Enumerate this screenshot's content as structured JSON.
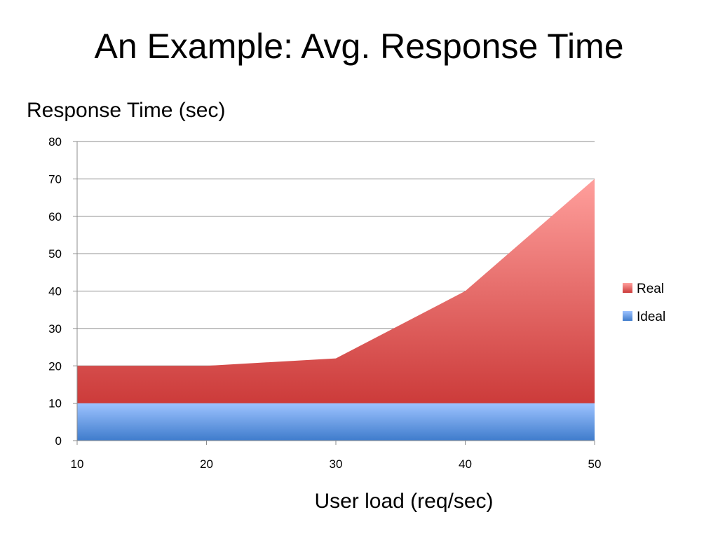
{
  "slide": {
    "title": "An Example: Avg. Response Time"
  },
  "chart_data": {
    "type": "area",
    "stacked": true,
    "ylabel": "Response Time (sec)",
    "xlabel": "User load (req/sec)",
    "x": [
      10,
      20,
      30,
      40,
      50
    ],
    "xlim": [
      10,
      50
    ],
    "ylim": [
      0,
      80
    ],
    "y_ticks": [
      0,
      10,
      20,
      30,
      40,
      50,
      60,
      70,
      80
    ],
    "x_ticks": [
      10,
      20,
      30,
      40,
      50
    ],
    "grid": true,
    "legend_position": "right",
    "series": [
      {
        "name": "Ideal",
        "values": [
          10,
          10,
          10,
          10,
          10
        ],
        "color_top": "#9dc3ff",
        "color_bottom": "#3f7ccc",
        "legend_color": "#5b9bd5"
      },
      {
        "name": "Real",
        "values": [
          10,
          10,
          12,
          30,
          60
        ],
        "total_values": [
          20,
          20,
          22,
          40,
          70
        ],
        "color_top": "#ff9f9c",
        "color_bottom": "#cc3b3a",
        "legend_color": "#e0524f"
      }
    ],
    "legend_order": [
      "Real",
      "Ideal"
    ]
  }
}
